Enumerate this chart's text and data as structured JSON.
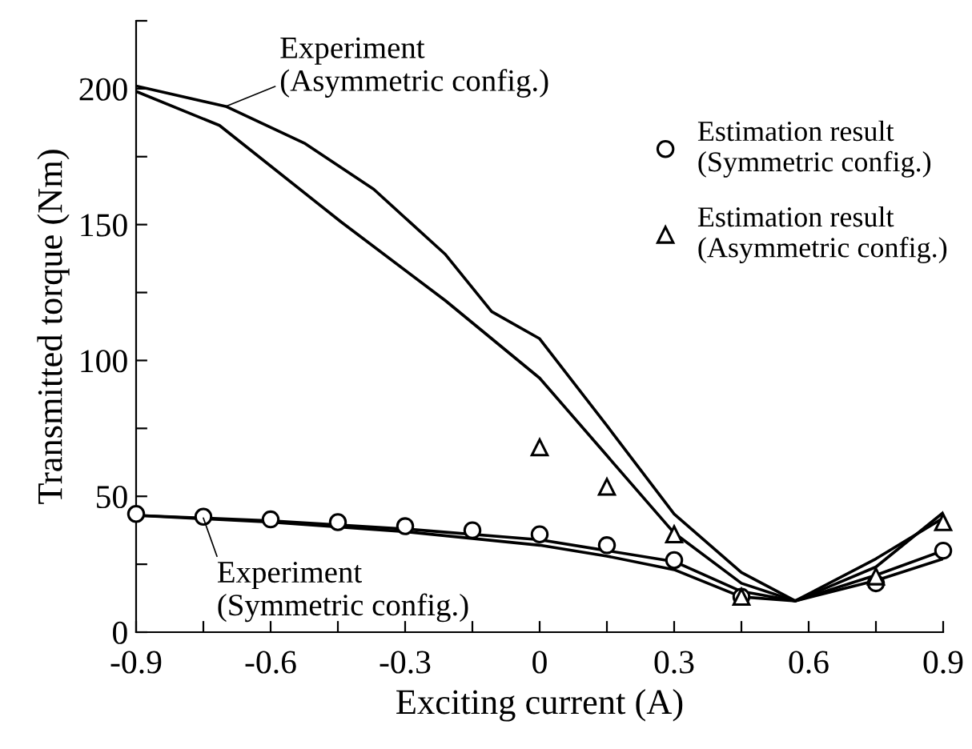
{
  "chart_data": {
    "type": "line",
    "xlabel": "Exciting current (A)",
    "ylabel": "Transmitted torque (Nm)",
    "xlim": [
      -0.9,
      0.9
    ],
    "ylim": [
      0,
      225
    ],
    "xticks": [
      -0.9,
      {
        "value": -0.75,
        "label": null
      },
      -0.6,
      {
        "value": -0.45,
        "label": null
      },
      -0.3,
      {
        "value": -0.15,
        "label": null
      },
      0,
      {
        "value": 0.15,
        "label": null
      },
      0.3,
      {
        "value": 0.45,
        "label": null
      },
      0.6,
      {
        "value": 0.75,
        "label": null
      },
      0.9
    ],
    "yticks": [
      0,
      {
        "value": 25,
        "label": null
      },
      50,
      {
        "value": 75,
        "label": null
      },
      100,
      {
        "value": 125,
        "label": null
      },
      150,
      {
        "value": 175,
        "label": null
      },
      200,
      {
        "value": 225,
        "label": null
      }
    ],
    "grid": false,
    "legend": "right",
    "series": [
      {
        "color": "#000000",
        "marker": "none",
        "x": [
          -0.9,
          -0.7,
          -0.525,
          -0.37,
          -0.21,
          -0.107,
          0,
          0.15,
          0.3,
          0.45,
          0.57,
          0.75,
          0.9
        ],
        "values": [
          201,
          193.5,
          180,
          163,
          139,
          118,
          108,
          76,
          43.5,
          22,
          11.5,
          27,
          42
        ]
      },
      {
        "color": "#000000",
        "marker": "none",
        "x": [
          -0.9,
          -0.714,
          -0.443,
          -0.21,
          0,
          0.15,
          0.3,
          0.45,
          0.57,
          0.75,
          0.9
        ],
        "values": [
          199,
          186.5,
          151,
          122,
          93.5,
          65,
          36.5,
          18,
          11.5,
          24,
          44
        ]
      },
      {
        "color": "#000000",
        "marker": "none",
        "x": [
          -0.9,
          -0.6,
          -0.3,
          0,
          0.15,
          0.3,
          0.45,
          0.57,
          0.75,
          0.9
        ],
        "values": [
          43,
          41,
          38,
          34,
          30,
          26,
          15,
          11.5,
          21,
          30
        ]
      },
      {
        "color": "#000000",
        "marker": "none",
        "x": [
          -0.9,
          -0.6,
          -0.3,
          0,
          0.15,
          0.3,
          0.45,
          0.57,
          0.75,
          0.9
        ],
        "values": [
          43,
          40.5,
          37,
          32,
          28,
          23,
          13,
          11.5,
          19,
          27
        ]
      },
      {
        "type": "scatter",
        "name": "Estimation result\n(Symmetric config.)",
        "color": "#000000",
        "marker": "circle",
        "x": [
          -0.9,
          -0.75,
          -0.6,
          -0.45,
          -0.3,
          -0.15,
          0,
          0.15,
          0.3,
          0.45,
          0.75,
          0.9
        ],
        "values": [
          43.5,
          42.5,
          41.5,
          40.5,
          39,
          37.5,
          36,
          32,
          26.5,
          13,
          18,
          30
        ]
      },
      {
        "type": "scatter",
        "name": "Estimation result\n(Asymmetric config.)",
        "color": "#000000",
        "marker": "triangle",
        "x": [
          0,
          0.15,
          0.3,
          0.45,
          0.75,
          0.9
        ],
        "values": [
          68,
          53.5,
          36,
          13,
          20.5,
          40.5
        ]
      }
    ],
    "annotations": [
      {
        "text": "Experiment\n(Asymmetric config.)",
        "x": -0.7,
        "y": 193.5
      },
      {
        "text": "Experiment\n(Symmetric config.)",
        "x": -0.75,
        "y": 42
      }
    ]
  }
}
